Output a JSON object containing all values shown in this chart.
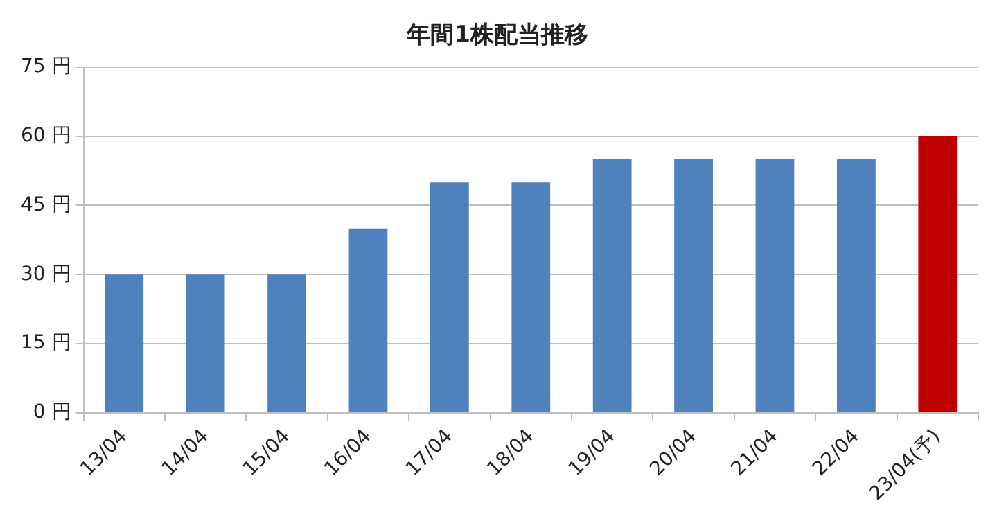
{
  "chart_data": {
    "type": "bar",
    "title": "年間1株配当推移",
    "categories": [
      "13/04",
      "14/04",
      "15/04",
      "16/04",
      "17/04",
      "18/04",
      "19/04",
      "20/04",
      "21/04",
      "22/04",
      "23/04(予)"
    ],
    "values": [
      30,
      30,
      30,
      40,
      50,
      50,
      55,
      55,
      55,
      55,
      60
    ],
    "colors": [
      "#4f81bd",
      "#4f81bd",
      "#4f81bd",
      "#4f81bd",
      "#4f81bd",
      "#4f81bd",
      "#4f81bd",
      "#4f81bd",
      "#4f81bd",
      "#4f81bd",
      "#c00000"
    ],
    "ylim": [
      0,
      75
    ],
    "yticks": [
      {
        "value": 0,
        "label": "0 円"
      },
      {
        "value": 15,
        "label": "15 円"
      },
      {
        "value": 30,
        "label": "30 円"
      },
      {
        "value": 45,
        "label": "45 円"
      },
      {
        "value": 60,
        "label": "60 円"
      },
      {
        "value": 75,
        "label": "75 円"
      }
    ],
    "grid": "y",
    "legend": false
  }
}
